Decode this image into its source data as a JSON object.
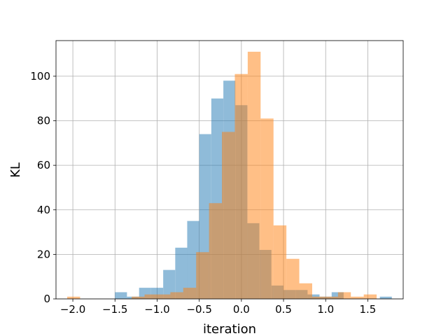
{
  "chart_data": {
    "type": "bar",
    "subtype": "histogram-overlay",
    "title": "",
    "xlabel": "iteration",
    "ylabel": "KL",
    "xlim": [
      -2.2,
      1.92
    ],
    "ylim": [
      0,
      116
    ],
    "grid": true,
    "legend": "none",
    "x_ticks": [
      -2.0,
      -1.5,
      -1.0,
      -0.5,
      0.0,
      0.5,
      1.0,
      1.5
    ],
    "x_tick_labels": [
      "−2.0",
      "−1.5",
      "−1.0",
      "−0.5",
      "0.0",
      "0.5",
      "1.0",
      "1.5"
    ],
    "y_ticks": [
      0,
      20,
      40,
      60,
      80,
      100
    ],
    "y_tick_labels": [
      "0",
      "20",
      "40",
      "60",
      "80",
      "100"
    ],
    "series": [
      {
        "color": "#1f77b4",
        "opacity": 0.5,
        "bin_width": 0.1423,
        "bin_starts": [
          -1.5,
          -1.357,
          -1.214,
          -1.071,
          -0.928,
          -0.785,
          -0.643,
          -0.5,
          -0.357,
          -0.214,
          -0.071,
          0.071,
          0.214,
          0.357,
          0.5,
          0.643,
          0.785,
          0.928,
          1.071,
          1.214,
          1.357,
          1.5,
          1.643
        ],
        "counts": [
          3,
          1,
          5,
          5,
          13,
          23,
          35,
          74,
          90,
          98,
          87,
          34,
          22,
          6,
          4,
          4,
          2,
          1,
          3,
          0,
          0,
          0,
          1
        ]
      },
      {
        "color": "#ff7f0e",
        "opacity": 0.5,
        "bin_width": 0.153,
        "bin_starts": [
          -2.067,
          -1.914,
          -1.761,
          -1.608,
          -1.455,
          -1.302,
          -1.149,
          -0.996,
          -0.843,
          -0.69,
          -0.537,
          -0.384,
          -0.231,
          -0.078,
          0.075,
          0.228,
          0.381,
          0.534,
          0.687,
          0.84,
          0.993,
          1.146,
          1.299,
          1.452
        ],
        "counts": [
          1,
          0,
          0,
          0,
          0,
          1,
          2,
          2,
          3,
          5,
          21,
          43,
          75,
          101,
          111,
          81,
          33,
          18,
          7,
          1,
          1,
          3,
          1,
          2
        ]
      }
    ]
  }
}
